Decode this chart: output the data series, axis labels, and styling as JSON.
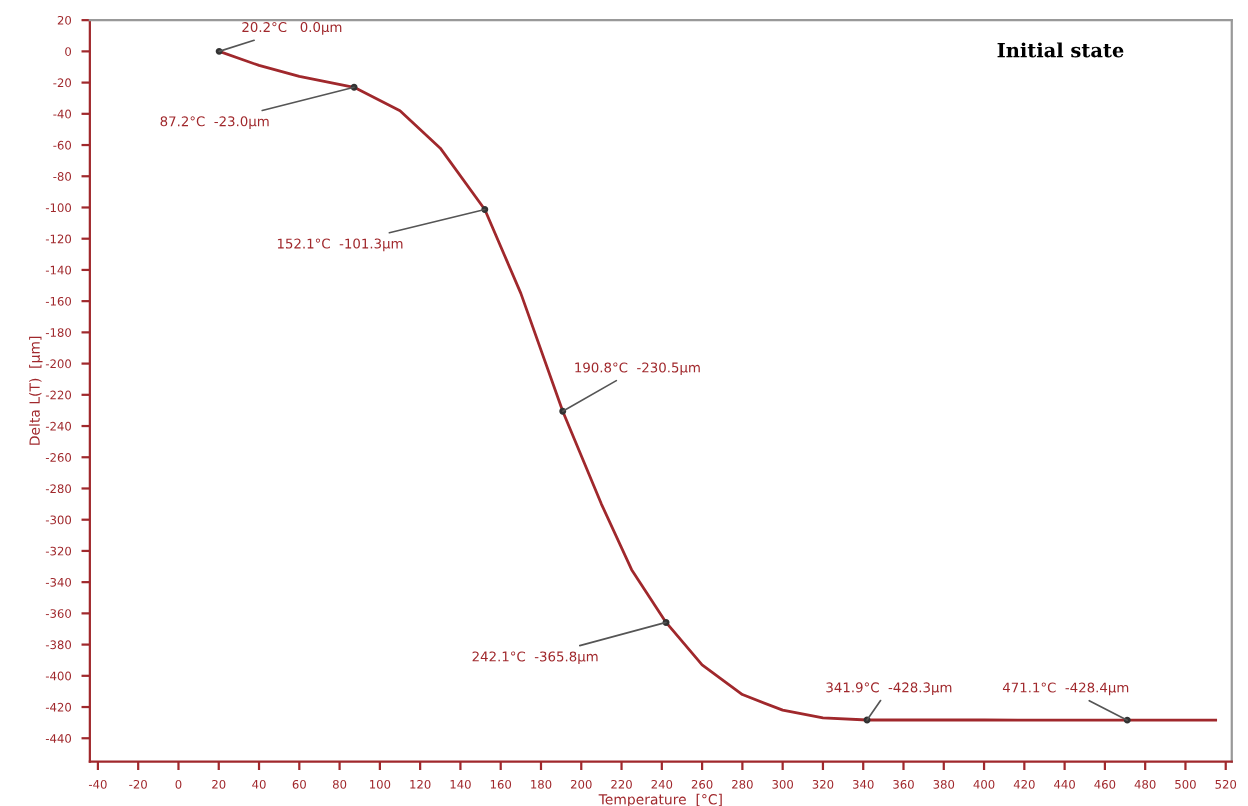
{
  "chart_data": {
    "type": "line",
    "title": "Initial state",
    "xlabel": "Temperature  [°C]",
    "ylabel": "Delta L(T)  [µm]",
    "x": [
      20.2,
      40,
      60,
      87.2,
      110,
      130,
      152.1,
      170,
      190.8,
      210,
      225,
      242.1,
      260,
      280,
      300,
      320,
      341.9,
      400,
      471.1,
      515
    ],
    "series": [
      {
        "color": "#a0282c",
        "values": [
          0.0,
          -9,
          -16,
          -23.0,
          -38,
          -62,
          -101.3,
          -155,
          -230.5,
          -290,
          -332,
          -365.8,
          -393,
          -412,
          -422,
          -427,
          -428.3,
          -428.3,
          -428.4,
          -428.4
        ]
      }
    ],
    "xlim": [
      -44,
      523
    ],
    "xticks": [
      -40,
      -20,
      0,
      20,
      40,
      60,
      80,
      100,
      120,
      140,
      160,
      180,
      200,
      220,
      240,
      260,
      280,
      300,
      320,
      340,
      360,
      380,
      400,
      420,
      440,
      460,
      480,
      500,
      520
    ],
    "ylim": [
      -455,
      20
    ],
    "yticks": [
      20,
      0,
      -20,
      -40,
      -60,
      -80,
      -100,
      -120,
      -140,
      -160,
      -180,
      -200,
      -220,
      -240,
      -260,
      -280,
      -300,
      -320,
      -340,
      -360,
      -380,
      -400,
      -420,
      -440
    ],
    "grid": false,
    "legend": false,
    "marker": "none",
    "line_style": "solid",
    "annotations": [
      {
        "text": "20.2°C   0.0µm",
        "x": 20.2,
        "y": 0.0
      },
      {
        "text": "87.2°C  -23.0µm",
        "x": 87.2,
        "y": -23.0
      },
      {
        "text": "152.1°C  -101.3µm",
        "x": 152.1,
        "y": -101.3
      },
      {
        "text": "190.8°C  -230.5µm",
        "x": 190.8,
        "y": -230.5
      },
      {
        "text": "242.1°C  -365.8µm",
        "x": 242.1,
        "y": -365.8
      },
      {
        "text": "341.9°C  -428.3µm",
        "x": 341.9,
        "y": -428.3
      },
      {
        "text": "471.1°C  -428.4µm",
        "x": 471.1,
        "y": -428.4
      }
    ]
  }
}
